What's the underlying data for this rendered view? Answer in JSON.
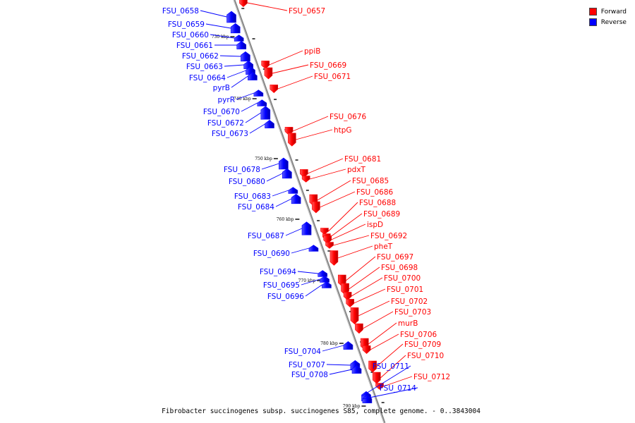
{
  "colors": {
    "forward": "#ff0000",
    "reverse": "#0000ff",
    "backbone": "#888888"
  },
  "legend": {
    "forward": "Forward",
    "reverse": "Reverse"
  },
  "caption": "Fibrobacter succinogenes subsp. succinogenes S85, complete genome. - 0..3843004",
  "kbp_markers": [
    "730 kbp",
    "740 kbp",
    "750 kbp",
    "760 kbp",
    "770 kbp",
    "780 kbp",
    "790 kbp"
  ],
  "genes": [
    {
      "name": "FSU_0658",
      "strand": "reverse",
      "size": 5
    },
    {
      "name": "FSU_0659",
      "strand": "reverse",
      "size": 4
    },
    {
      "name": "FSU_0660",
      "strand": "reverse",
      "size": 2
    },
    {
      "name": "FSU_0661",
      "strand": "reverse",
      "size": 3
    },
    {
      "name": "FSU_0662",
      "strand": "reverse",
      "size": 4
    },
    {
      "name": "FSU_0663",
      "strand": "reverse",
      "size": 3
    },
    {
      "name": "FSU_0664",
      "strand": "reverse",
      "size": 3
    },
    {
      "name": "pyrB",
      "strand": "reverse",
      "size": 3
    },
    {
      "name": "pyrR",
      "strand": "reverse",
      "size": 2
    },
    {
      "name": "FSU_0670",
      "strand": "reverse",
      "size": 2
    },
    {
      "name": "FSU_0672",
      "strand": "reverse",
      "size": 6
    },
    {
      "name": "FSU_0673",
      "strand": "reverse",
      "size": 3
    },
    {
      "name": "FSU_0678",
      "strand": "reverse",
      "size": 5
    },
    {
      "name": "FSU_0680",
      "strand": "reverse",
      "size": 4
    },
    {
      "name": "FSU_0683",
      "strand": "reverse",
      "size": 2
    },
    {
      "name": "FSU_0684",
      "strand": "reverse",
      "size": 4
    },
    {
      "name": "FSU_0687",
      "strand": "reverse",
      "size": 6
    },
    {
      "name": "FSU_0690",
      "strand": "reverse",
      "size": 2
    },
    {
      "name": "FSU_0694",
      "strand": "reverse",
      "size": 2
    },
    {
      "name": "FSU_0695",
      "strand": "reverse",
      "size": 2
    },
    {
      "name": "FSU_0696",
      "strand": "reverse",
      "size": 2
    },
    {
      "name": "FSU_0704",
      "strand": "reverse",
      "size": 3
    },
    {
      "name": "FSU_0707",
      "strand": "reverse",
      "size": 4
    },
    {
      "name": "FSU_0708",
      "strand": "reverse",
      "size": 3
    },
    {
      "name": "FSU_0711",
      "strand": "reverse",
      "size": 4
    },
    {
      "name": "FSU_0714",
      "strand": "reverse",
      "size": 3
    },
    {
      "name": "FSU_0657",
      "strand": "forward",
      "size": 3
    },
    {
      "name": "ppiB",
      "strand": "forward",
      "size": 3
    },
    {
      "name": "FSU_0669",
      "strand": "forward",
      "size": 5
    },
    {
      "name": "FSU_0671",
      "strand": "forward",
      "size": 3
    },
    {
      "name": "FSU_0676",
      "strand": "forward",
      "size": 3
    },
    {
      "name": "htpG",
      "strand": "forward",
      "size": 6
    },
    {
      "name": "FSU_0681",
      "strand": "forward",
      "size": 3
    },
    {
      "name": "pdxT",
      "strand": "forward",
      "size": 2
    },
    {
      "name": "FSU_0685",
      "strand": "forward",
      "size": 5
    },
    {
      "name": "FSU_0686",
      "strand": "forward",
      "size": 5
    },
    {
      "name": "FSU_0688",
      "strand": "forward",
      "size": 2
    },
    {
      "name": "FSU_0689",
      "strand": "forward",
      "size": 2
    },
    {
      "name": "ispD",
      "strand": "forward",
      "size": 3
    },
    {
      "name": "FSU_0692",
      "strand": "forward",
      "size": 2
    },
    {
      "name": "pheT",
      "strand": "forward",
      "size": 7
    },
    {
      "name": "FSU_0697",
      "strand": "forward",
      "size": 5
    },
    {
      "name": "FSU_0698",
      "strand": "forward",
      "size": 5
    },
    {
      "name": "FSU_0700",
      "strand": "forward",
      "size": 3
    },
    {
      "name": "FSU_0701",
      "strand": "forward",
      "size": 3
    },
    {
      "name": "FSU_0702",
      "strand": "forward",
      "size": 8
    },
    {
      "name": "FSU_0703",
      "strand": "forward",
      "size": 4
    },
    {
      "name": "murB",
      "strand": "forward",
      "size": 5
    },
    {
      "name": "FSU_0706",
      "strand": "forward",
      "size": 3
    },
    {
      "name": "FSU_0709",
      "strand": "forward",
      "size": 5
    },
    {
      "name": "FSU_0710",
      "strand": "forward",
      "size": 5
    },
    {
      "name": "FSU_0712",
      "strand": "forward",
      "size": 2
    }
  ]
}
